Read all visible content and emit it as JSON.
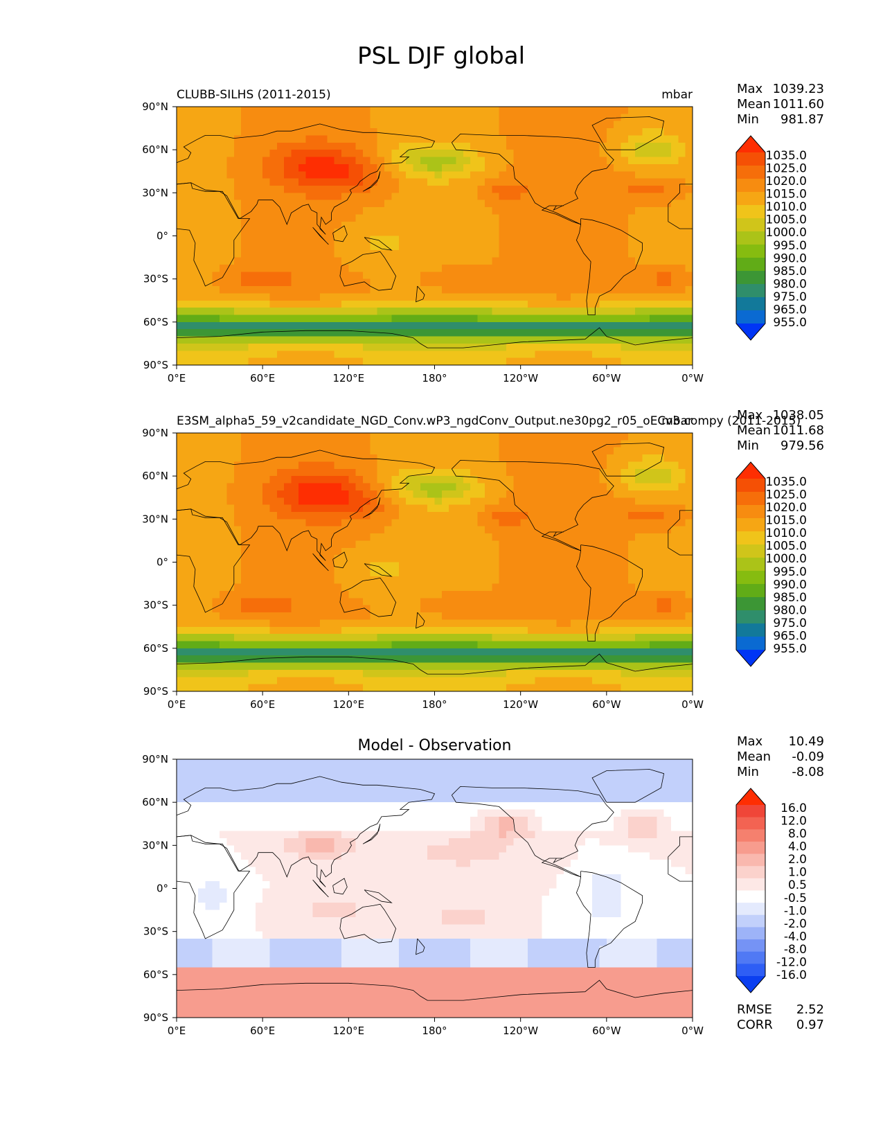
{
  "figure": {
    "title": "PSL DJF global"
  },
  "colors": {
    "levels": [
      "#0035f5",
      "#0a6ad2",
      "#12799a",
      "#2f8e6b",
      "#3c9635",
      "#61ac17",
      "#86bc10",
      "#abc318",
      "#d0c51a",
      "#f0c41a",
      "#f6a614",
      "#f78c10",
      "#f66e0a",
      "#f55005",
      "#fe2e02"
    ],
    "diff": [
      "#0b3ff0",
      "#2e5ef5",
      "#5079f4",
      "#7593f5",
      "#9db3f8",
      "#c2d0fb",
      "#e4eafd",
      "#ffffff",
      "#fde8e6",
      "#fbd2cc",
      "#f9b8ae",
      "#f79c8e",
      "#f5806e",
      "#f36352",
      "#f04638",
      "#fe2e02"
    ],
    "coast": "#000000"
  },
  "chart_data": [
    {
      "type": "heatmap",
      "title_left": "CLUBB-SILHS (2011-2015)",
      "title_right": "mbar",
      "stats": [
        {
          "label": "Max",
          "value": "1039.23"
        },
        {
          "label": "Mean",
          "value": "1011.60"
        },
        {
          "label": "Min",
          "value": "981.87"
        }
      ],
      "xticks": [
        "0°E",
        "60°E",
        "120°E",
        "180°",
        "120°W",
        "60°W",
        "0°W"
      ],
      "yticks": [
        "90°N",
        "60°N",
        "30°N",
        "0°",
        "30°S",
        "60°S",
        "90°S"
      ],
      "xlim": [
        0,
        360
      ],
      "ylim": [
        -90,
        90
      ],
      "colorbar_labels": [
        "1035.0",
        "1025.0",
        "1020.0",
        "1015.0",
        "1010.0",
        "1005.0",
        "1000.0",
        "995.0",
        "990.0",
        "985.0",
        "980.0",
        "975.0",
        "965.0",
        "955.0"
      ]
    },
    {
      "type": "heatmap",
      "title_left": "E3SM_alpha5_59_v2candidate_NGD_Conv.wP3_ngdConv_Output.ne30pg2_r05_oECv3.compy (2011-2015)",
      "title_right": "mbar",
      "stats": [
        {
          "label": "Max",
          "value": "1038.05"
        },
        {
          "label": "Mean",
          "value": "1011.68"
        },
        {
          "label": "Min",
          "value": "979.56"
        }
      ],
      "xticks": [
        "0°E",
        "60°E",
        "120°E",
        "180°",
        "120°W",
        "60°W",
        "0°W"
      ],
      "yticks": [
        "90°N",
        "60°N",
        "30°N",
        "0°",
        "30°S",
        "60°S",
        "90°S"
      ],
      "xlim": [
        0,
        360
      ],
      "ylim": [
        -90,
        90
      ],
      "colorbar_labels": [
        "1035.0",
        "1025.0",
        "1020.0",
        "1015.0",
        "1010.0",
        "1005.0",
        "1000.0",
        "995.0",
        "990.0",
        "985.0",
        "980.0",
        "975.0",
        "965.0",
        "955.0"
      ]
    },
    {
      "type": "heatmap",
      "title_center": "Model - Observation",
      "stats": [
        {
          "label": "Max",
          "value": "10.49"
        },
        {
          "label": "Mean",
          "value": "-0.09"
        },
        {
          "label": "Min",
          "value": "-8.08"
        }
      ],
      "xticks": [
        "0°E",
        "60°E",
        "120°E",
        "180°",
        "120°W",
        "60°W",
        "0°W"
      ],
      "yticks": [
        "90°N",
        "60°N",
        "30°N",
        "0°",
        "30°S",
        "60°S",
        "90°S"
      ],
      "xlim": [
        0,
        360
      ],
      "ylim": [
        -90,
        90
      ],
      "colorbar_labels": [
        "16.0",
        "12.0",
        "8.0",
        "4.0",
        "2.0",
        "1.0",
        "0.5",
        "-0.5",
        "-1.0",
        "-2.0",
        "-4.0",
        "-8.0",
        "-12.0",
        "-16.0"
      ],
      "metrics": [
        {
          "label": "RMSE",
          "value": "2.52"
        },
        {
          "label": "CORR",
          "value": "0.97"
        }
      ]
    }
  ]
}
